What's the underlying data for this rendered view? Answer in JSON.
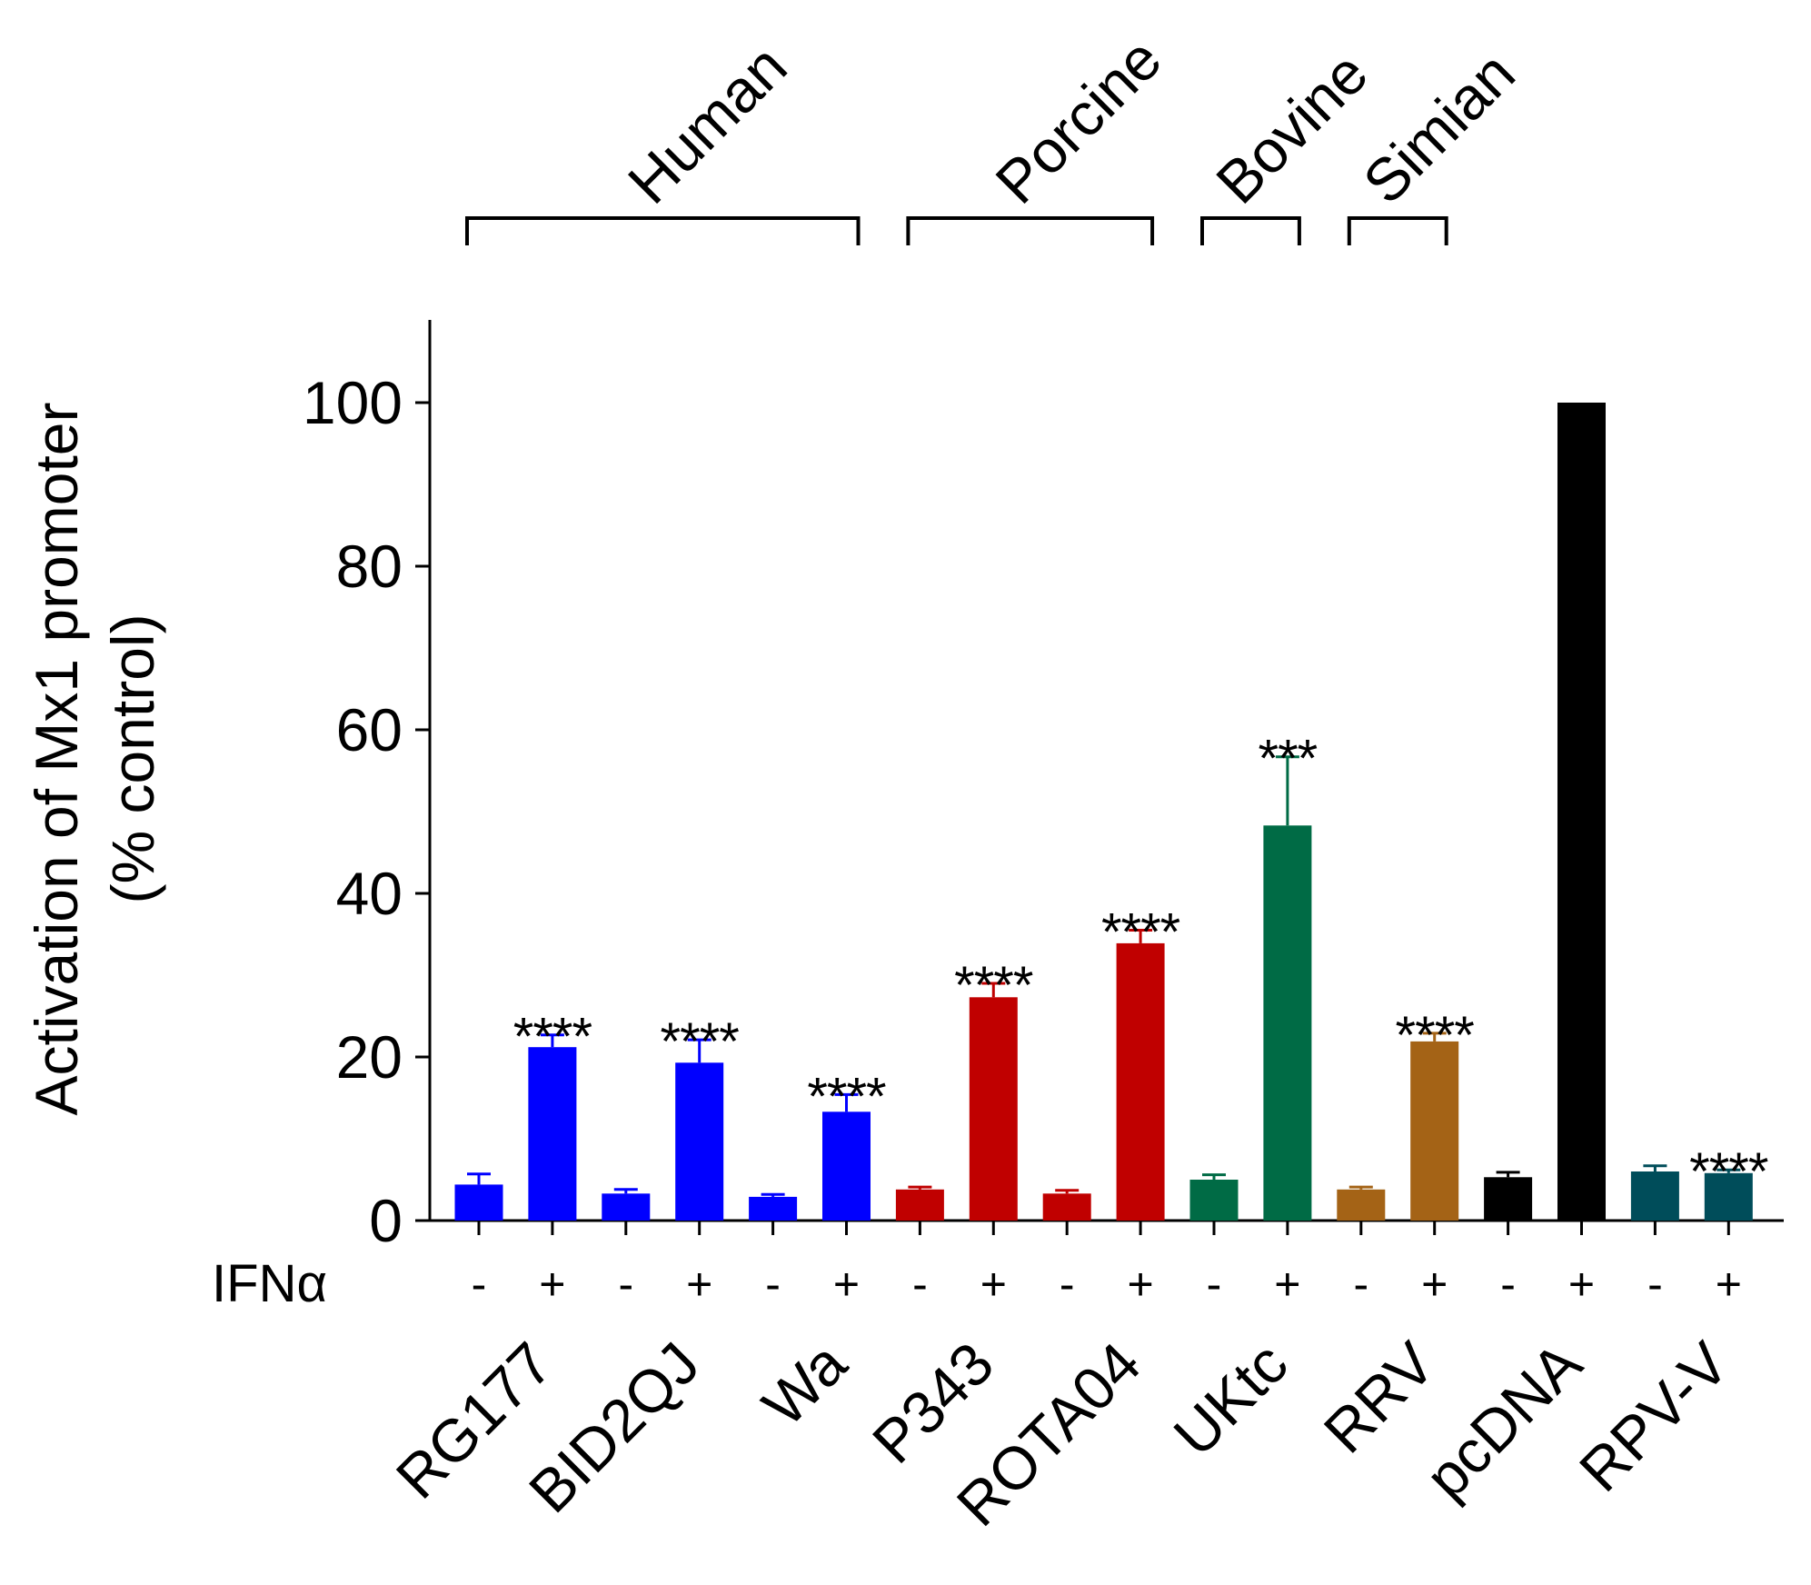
{
  "chart_data": {
    "type": "bar",
    "title": "",
    "xlabel": "",
    "ylabel_line1": "Activation of Mx1 promoter",
    "ylabel_line2": "(% control)",
    "ylim": [
      0,
      110
    ],
    "yticks": [
      0,
      20,
      40,
      60,
      80,
      100
    ],
    "treatment_label": "IFNα",
    "strains": [
      {
        "name": "RG177",
        "group": "Human",
        "color": "#0000ff",
        "bars": [
          {
            "sign": "-",
            "value": 4.4,
            "error": 1.3
          },
          {
            "sign": "+",
            "value": 21.2,
            "error": 1.5,
            "sig": "****"
          }
        ]
      },
      {
        "name": "BID2QJ",
        "group": "Human",
        "color": "#0000ff",
        "bars": [
          {
            "sign": "-",
            "value": 3.3,
            "error": 0.5
          },
          {
            "sign": "+",
            "value": 19.3,
            "error": 2.8,
            "sig": "****"
          }
        ]
      },
      {
        "name": "Wa",
        "group": "Human",
        "color": "#0000ff",
        "bars": [
          {
            "sign": "-",
            "value": 2.9,
            "error": 0.3
          },
          {
            "sign": "+",
            "value": 13.3,
            "error": 2.1,
            "sig": "****"
          }
        ]
      },
      {
        "name": "P343",
        "group": "Porcine",
        "color": "#c00000",
        "bars": [
          {
            "sign": "-",
            "value": 3.8,
            "error": 0.3
          },
          {
            "sign": "+",
            "value": 27.3,
            "error": 1.7,
            "sig": "****"
          }
        ]
      },
      {
        "name": "ROTA04",
        "group": "Porcine",
        "color": "#c00000",
        "bars": [
          {
            "sign": "-",
            "value": 3.3,
            "error": 0.4
          },
          {
            "sign": "+",
            "value": 33.9,
            "error": 1.6,
            "sig": "****"
          }
        ]
      },
      {
        "name": "UKtc",
        "group": "Bovine",
        "color": "#006b45",
        "bars": [
          {
            "sign": "-",
            "value": 5.0,
            "error": 0.6
          },
          {
            "sign": "+",
            "value": 48.3,
            "error": 8.4,
            "sig": "***"
          }
        ]
      },
      {
        "name": "RRV",
        "group": "Simian",
        "color": "#a46316",
        "bars": [
          {
            "sign": "-",
            "value": 3.8,
            "error": 0.3
          },
          {
            "sign": "+",
            "value": 21.9,
            "error": 1.0,
            "sig": "****"
          }
        ]
      },
      {
        "name": "pcDNA",
        "group": "",
        "color": "#000000",
        "bars": [
          {
            "sign": "-",
            "value": 5.3,
            "error": 0.6
          },
          {
            "sign": "+",
            "value": 100.0,
            "error": 0
          }
        ]
      },
      {
        "name": "RPV-V",
        "group": "",
        "color": "#004d5a",
        "bars": [
          {
            "sign": "-",
            "value": 6.0,
            "error": 0.7
          },
          {
            "sign": "+",
            "value": 5.8,
            "error": 0.4,
            "sig": "****"
          }
        ]
      }
    ],
    "groups": [
      {
        "name": "Human",
        "first": 0,
        "last": 2
      },
      {
        "name": "Porcine",
        "first": 3,
        "last": 4
      },
      {
        "name": "Bovine",
        "first": 5,
        "last": 5
      },
      {
        "name": "Simian",
        "first": 6,
        "last": 6
      }
    ],
    "grid": false,
    "legend": "none"
  }
}
